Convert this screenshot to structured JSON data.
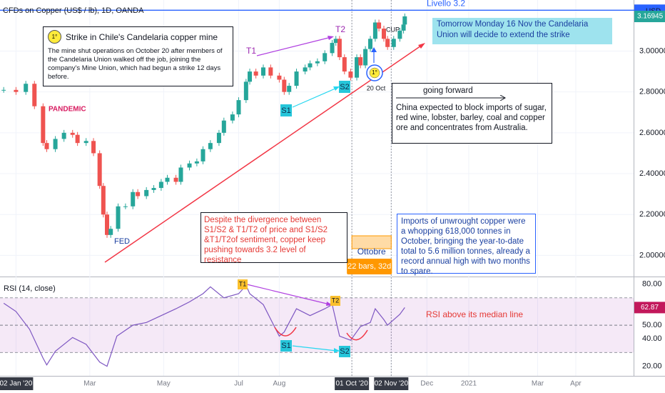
{
  "chart_data": {
    "type": "candlestick",
    "title": "CFDs on Copper (US$ / lb), 1D, OANDA",
    "currency": "USD",
    "x": [
      "2019-12-23",
      "2020-01-02",
      "2020-01-10",
      "2020-01-17",
      "2020-01-24",
      "2020-01-27",
      "2020-02-03",
      "2020-02-10",
      "2020-02-17",
      "2020-02-21",
      "2020-02-28",
      "2020-03-05",
      "2020-03-10",
      "2020-03-13",
      "2020-03-16",
      "2020-03-19",
      "2020-03-25",
      "2020-03-31",
      "2020-04-06",
      "2020-04-10",
      "2020-04-17",
      "2020-04-23",
      "2020-04-29",
      "2020-05-04",
      "2020-05-11",
      "2020-05-15",
      "2020-05-22",
      "2020-05-28",
      "2020-06-02",
      "2020-06-08",
      "2020-06-15",
      "2020-06-19",
      "2020-06-26",
      "2020-07-01",
      "2020-07-07",
      "2020-07-10",
      "2020-07-15",
      "2020-07-21",
      "2020-07-27",
      "2020-08-03",
      "2020-08-07",
      "2020-08-11",
      "2020-08-17",
      "2020-08-24",
      "2020-08-28",
      "2020-09-03",
      "2020-09-09",
      "2020-09-15",
      "2020-09-18",
      "2020-09-21",
      "2020-09-25",
      "2020-09-30",
      "2020-10-05",
      "2020-10-08",
      "2020-10-12",
      "2020-10-16",
      "2020-10-20",
      "2020-10-23",
      "2020-10-27",
      "2020-10-30",
      "2020-11-04",
      "2020-11-09",
      "2020-11-12",
      "2020-11-13"
    ],
    "values": [
      2.81,
      2.8,
      2.84,
      2.73,
      2.55,
      2.52,
      2.57,
      2.6,
      2.59,
      2.55,
      2.56,
      2.5,
      2.34,
      2.2,
      2.1,
      2.13,
      2.24,
      2.24,
      2.31,
      2.29,
      2.32,
      2.33,
      2.36,
      2.38,
      2.36,
      2.43,
      2.45,
      2.46,
      2.52,
      2.55,
      2.6,
      2.66,
      2.69,
      2.76,
      2.85,
      2.9,
      2.88,
      2.92,
      2.88,
      2.86,
      2.8,
      2.83,
      2.9,
      2.92,
      2.94,
      2.95,
      2.99,
      3.04,
      3.06,
      2.97,
      2.9,
      2.87,
      2.97,
      2.93,
      3.01,
      3.06,
      3.14,
      3.11,
      3.06,
      3.02,
      3.06,
      3.1,
      3.13,
      3.17
    ],
    "up_color": "#26a69a",
    "down_color": "#ef5350",
    "xlim": [
      "2019-12-20",
      "2021-05-18"
    ],
    "xticks": [
      {
        "value": "2020-01-02",
        "label": "02 Jan '20"
      },
      {
        "value": "2020-03-02",
        "label": "Mar"
      },
      {
        "value": "2020-05-01",
        "label": "May"
      },
      {
        "value": "2020-07-01",
        "label": "Jul"
      },
      {
        "value": "2020-08-03",
        "label": "Aug"
      },
      {
        "value": "2020-10-01",
        "label": "01 Oct '20"
      },
      {
        "value": "2020-11-02",
        "label": "02 Nov '20"
      },
      {
        "value": "2020-12-01",
        "label": "Dec"
      },
      {
        "value": "2021-01-04",
        "label": "2021"
      },
      {
        "value": "2021-03-01",
        "label": "Mar"
      },
      {
        "value": "2021-04-01",
        "label": "Apr"
      }
    ],
    "ylim": [
      1.9,
      3.25
    ],
    "yticks": [
      {
        "value": 2.0,
        "label": "2.00000"
      },
      {
        "value": 2.2,
        "label": "2.20000"
      },
      {
        "value": 2.4,
        "label": "2.40000"
      },
      {
        "value": 2.6,
        "label": "2.60000"
      },
      {
        "value": 2.8,
        "label": "2.80000"
      },
      {
        "value": 3.0,
        "label": "3.00000"
      }
    ],
    "last_price": 3.16945,
    "level": {
      "label": "Livello 3.2",
      "value": 3.2,
      "color": "#2962ff"
    },
    "annotations": {
      "strike_badge": "1°",
      "strike_title": "Strike in Chile's Candelaria copper mine",
      "strike_text": "The mine shut operations on October 20 after members of the Candelaria Union walked off the job, joining the company's Mine Union, which had begun a strike 12 days before.",
      "pandemic": "PANDEMIC",
      "fed": "FED",
      "t1": "T1",
      "t2": "T2",
      "s1": "S1",
      "s2": "S2",
      "cup": "CUP",
      "event_badge": "1°",
      "event_date": "20 Oct",
      "tomorrow": "Tomorrow Monday 16 Nov the Candelaria Union will decide to extend the strike",
      "going_forward": "going forward",
      "china": "China expected to block imports of sugar, red wine, lobster, barley, coal and copper ore and concentrates from Australia.",
      "divergence": "Despite the divergence between S1/S2 & T1/T2 of price and S1/S2 &T1/T2of sentiment, copper keep pushing towards 3.2 level of resistance",
      "imports": "Imports of unwrought copper were a whopping 618,000 tonnes in October, bringing the year-to-date total to 5.6 million tonnes, already a record annual high with two months to spare."
    },
    "range": {
      "from": "2020-10-01",
      "to": "2020-11-02",
      "label": "Ottobre",
      "info": "22 bars, 32d"
    },
    "rsi": {
      "title": "RSI (14, close)",
      "x": [
        "2019-12-23",
        "2020-01-02",
        "2020-01-13",
        "2020-01-24",
        "2020-01-27",
        "2020-02-03",
        "2020-02-17",
        "2020-02-28",
        "2020-03-10",
        "2020-03-16",
        "2020-03-24",
        "2020-04-06",
        "2020-04-17",
        "2020-04-29",
        "2020-05-11",
        "2020-05-22",
        "2020-06-02",
        "2020-06-08",
        "2020-06-19",
        "2020-07-01",
        "2020-07-07",
        "2020-07-10",
        "2020-07-21",
        "2020-08-03",
        "2020-08-07",
        "2020-08-17",
        "2020-08-28",
        "2020-09-09",
        "2020-09-15",
        "2020-09-21",
        "2020-09-30",
        "2020-10-08",
        "2020-10-16",
        "2020-10-20",
        "2020-10-27",
        "2020-10-30",
        "2020-11-09",
        "2020-11-13"
      ],
      "values": [
        66,
        60,
        47,
        26,
        21,
        31,
        41,
        36,
        23,
        20,
        42,
        50,
        52,
        57,
        62,
        67,
        73,
        78,
        70,
        73,
        79,
        73,
        65,
        42,
        45,
        62,
        57,
        62,
        65,
        42,
        39,
        49,
        52,
        62,
        54,
        50,
        58,
        62.87
      ],
      "color": "#7e57c2",
      "ylim": [
        13,
        85
      ],
      "yticks": [
        {
          "value": 20,
          "label": "20.00"
        },
        {
          "value": 40,
          "label": "40.00"
        },
        {
          "value": 50,
          "label": "50.00"
        },
        {
          "value": 80,
          "label": "80.00"
        }
      ],
      "band": [
        30,
        70
      ],
      "median": 50,
      "last": 62.87,
      "annotations": {
        "t1": "T1",
        "t2": "T2",
        "s1": "S1",
        "s2": "S2",
        "median_note": "RSI above its median line"
      }
    }
  }
}
